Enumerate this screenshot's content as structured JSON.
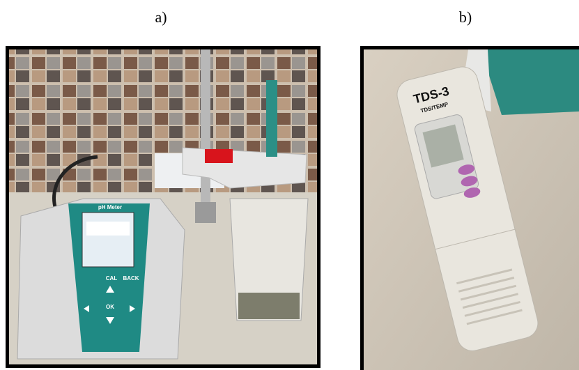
{
  "panels": [
    {
      "label": "a)",
      "texts": [
        "pH Meter",
        "CAL",
        "BACK",
        "OK"
      ]
    },
    {
      "label": "b)",
      "texts": [
        "TDS-3",
        "TDS/TEMP"
      ]
    }
  ]
}
